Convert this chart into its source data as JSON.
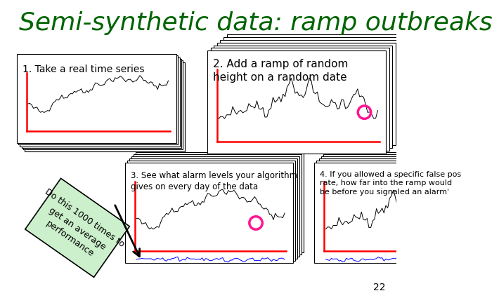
{
  "title": "Semi-synthetic data: ramp outbreaks",
  "title_color": "#006400",
  "title_fontsize": 26,
  "background_color": "#ffffff",
  "slide_number": "22",
  "panel1_label": "1. Take a real time series",
  "panel2_label": "2. Add a ramp of random\nheight on a random date",
  "panel3_label": "3. See what alarm levels your algorithm\ngives on every day of the data",
  "panel4_label": "4. If you allowed a specific false pos\nrate, how far into the ramp would\nbe before you signaled an alarm'",
  "callout_text": "Do this 1000 times to\nget an average\nperformance",
  "callout_bg": "#ccf0cc",
  "callout_border": "#000000"
}
